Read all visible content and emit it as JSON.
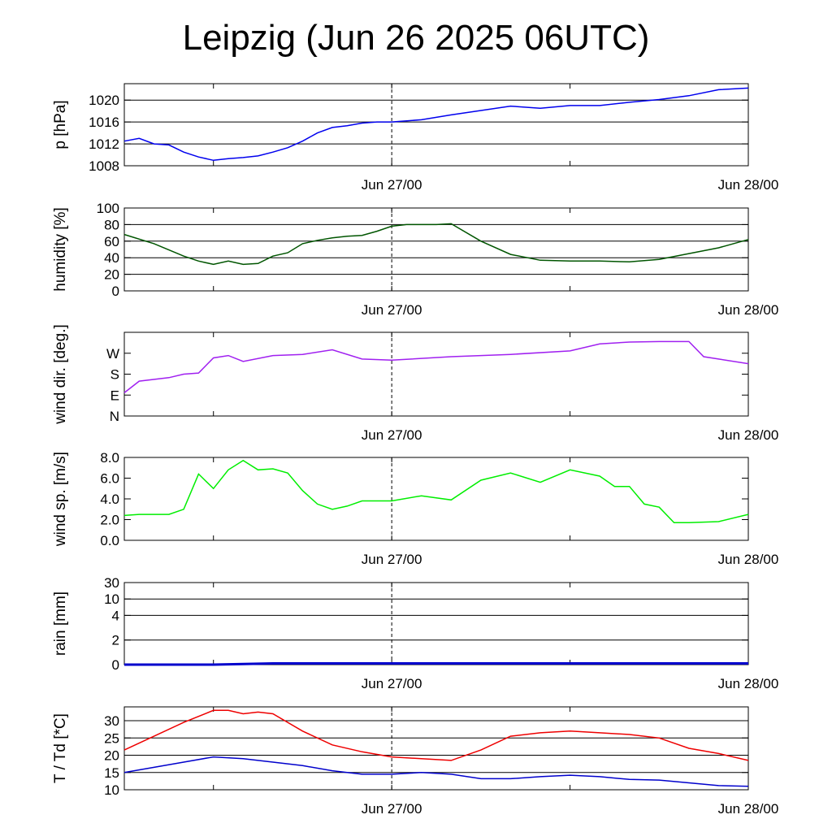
{
  "title": "Leipzig (Jun 26 2025 06UTC)",
  "time_axis": {
    "start": "2025-06-26T06:00Z",
    "end": "2025-06-28T00:00Z",
    "tick_labels": [
      "Jun 27/00",
      "Jun 28/00"
    ],
    "minor_ticks_every_hours": 12,
    "dashed_reference_line": "2025-06-27T00:00Z"
  },
  "colors": {
    "pressure": "#0000ee",
    "humidity": "#005500",
    "wind_dir": "#a020f0",
    "wind_speed": "#00ee00",
    "rain": "#0000cc",
    "temperature": "#ee0000",
    "dewpoint": "#0000cc"
  },
  "chart_data": [
    {
      "type": "line",
      "panel": "pressure",
      "ylabel": "p [hPa]",
      "ylim": [
        1008,
        1023
      ],
      "yticks": [
        {
          "v": 1008,
          "label": "1008"
        },
        {
          "v": 1012,
          "label": "1012"
        },
        {
          "v": 1016,
          "label": "1016"
        },
        {
          "v": 1020,
          "label": "1020"
        }
      ],
      "grid_y": [
        1012,
        1016,
        1020
      ],
      "series": [
        {
          "color_key": "pressure",
          "x": [
            "2025-06-26T06:00Z",
            "2025-06-26T07:00Z",
            "2025-06-26T08:00Z",
            "2025-06-26T09:00Z",
            "2025-06-26T10:00Z",
            "2025-06-26T11:00Z",
            "2025-06-26T12:00Z",
            "2025-06-26T13:00Z",
            "2025-06-26T14:00Z",
            "2025-06-26T15:00Z",
            "2025-06-26T16:00Z",
            "2025-06-26T17:00Z",
            "2025-06-26T18:00Z",
            "2025-06-26T19:00Z",
            "2025-06-26T20:00Z",
            "2025-06-26T21:00Z",
            "2025-06-26T22:00Z",
            "2025-06-26T23:00Z",
            "2025-06-27T00:00Z",
            "2025-06-27T02:00Z",
            "2025-06-27T04:00Z",
            "2025-06-27T06:00Z",
            "2025-06-27T08:00Z",
            "2025-06-27T10:00Z",
            "2025-06-27T12:00Z",
            "2025-06-27T14:00Z",
            "2025-06-27T16:00Z",
            "2025-06-27T18:00Z",
            "2025-06-27T20:00Z",
            "2025-06-27T22:00Z",
            "2025-06-28T00:00Z"
          ],
          "y": [
            1012.5,
            1013,
            1012,
            1011.8,
            1010.5,
            1009.6,
            1009,
            1009.3,
            1009.5,
            1009.8,
            1010.5,
            1011.3,
            1012.5,
            1014,
            1015,
            1015.3,
            1015.8,
            1016,
            1016,
            1016.4,
            1017.3,
            1018.1,
            1018.9,
            1018.5,
            1019,
            1019,
            1019.6,
            1020.1,
            1020.8,
            1021.9,
            1022.2
          ]
        }
      ]
    },
    {
      "type": "line",
      "panel": "humidity",
      "ylabel": "humidity [%]",
      "ylim": [
        0,
        100
      ],
      "yticks": [
        {
          "v": 0,
          "label": "0"
        },
        {
          "v": 20,
          "label": "20"
        },
        {
          "v": 40,
          "label": "40"
        },
        {
          "v": 60,
          "label": "60"
        },
        {
          "v": 80,
          "label": "80"
        },
        {
          "v": 100,
          "label": "100"
        }
      ],
      "grid_y": [
        20,
        40,
        60,
        80
      ],
      "series": [
        {
          "color_key": "humidity",
          "x": [
            "2025-06-26T06:00Z",
            "2025-06-26T08:00Z",
            "2025-06-26T10:00Z",
            "2025-06-26T11:00Z",
            "2025-06-26T12:00Z",
            "2025-06-26T13:00Z",
            "2025-06-26T14:00Z",
            "2025-06-26T15:00Z",
            "2025-06-26T16:00Z",
            "2025-06-26T17:00Z",
            "2025-06-26T18:00Z",
            "2025-06-26T19:00Z",
            "2025-06-26T20:00Z",
            "2025-06-26T21:00Z",
            "2025-06-26T22:00Z",
            "2025-06-26T23:00Z",
            "2025-06-27T00:00Z",
            "2025-06-27T01:00Z",
            "2025-06-27T02:00Z",
            "2025-06-27T03:00Z",
            "2025-06-27T04:00Z",
            "2025-06-27T06:00Z",
            "2025-06-27T08:00Z",
            "2025-06-27T10:00Z",
            "2025-06-27T12:00Z",
            "2025-06-27T14:00Z",
            "2025-06-27T16:00Z",
            "2025-06-27T18:00Z",
            "2025-06-27T20:00Z",
            "2025-06-27T22:00Z",
            "2025-06-28T00:00Z"
          ],
          "y": [
            68,
            57,
            42,
            36,
            32,
            36,
            32,
            33,
            42,
            46,
            57,
            61,
            64,
            66,
            67,
            72,
            78,
            80,
            80,
            80,
            81,
            60,
            44,
            37,
            36,
            36,
            35,
            38,
            45,
            52,
            62
          ]
        }
      ]
    },
    {
      "type": "line",
      "panel": "wind_direction",
      "ylabel": "wind dir. [deg.]",
      "ylim": [
        0,
        360
      ],
      "yticks": [
        {
          "v": 0,
          "label": "N"
        },
        {
          "v": 90,
          "label": "E"
        },
        {
          "v": 180,
          "label": "S"
        },
        {
          "v": 270,
          "label": "W"
        }
      ],
      "grid_y": [],
      "series": [
        {
          "color_key": "wind_dir",
          "x": [
            "2025-06-26T06:00Z",
            "2025-06-26T07:00Z",
            "2025-06-26T09:00Z",
            "2025-06-26T10:00Z",
            "2025-06-26T11:00Z",
            "2025-06-26T12:00Z",
            "2025-06-26T13:00Z",
            "2025-06-26T14:00Z",
            "2025-06-26T16:00Z",
            "2025-06-26T18:00Z",
            "2025-06-26T20:00Z",
            "2025-06-26T22:00Z",
            "2025-06-27T00:00Z",
            "2025-06-27T04:00Z",
            "2025-06-27T08:00Z",
            "2025-06-27T12:00Z",
            "2025-06-27T14:00Z",
            "2025-06-27T16:00Z",
            "2025-06-27T18:00Z",
            "2025-06-27T20:00Z",
            "2025-06-27T21:00Z",
            "2025-06-27T22:00Z",
            "2025-06-28T00:00Z"
          ],
          "y": [
            100,
            150,
            165,
            180,
            185,
            250,
            260,
            235,
            260,
            265,
            285,
            245,
            240,
            255,
            265,
            280,
            310,
            318,
            320,
            320,
            255,
            245,
            225
          ]
        }
      ]
    },
    {
      "type": "line",
      "panel": "wind_speed",
      "ylabel": "wind sp. [m/s]",
      "ylim": [
        0,
        8
      ],
      "yticks": [
        {
          "v": 0,
          "label": "0.0"
        },
        {
          "v": 2,
          "label": "2.0"
        },
        {
          "v": 4,
          "label": "4.0"
        },
        {
          "v": 6,
          "label": "6.0"
        },
        {
          "v": 8,
          "label": "8.0"
        }
      ],
      "grid_y": [],
      "series": [
        {
          "color_key": "wind_speed",
          "x": [
            "2025-06-26T06:00Z",
            "2025-06-26T07:00Z",
            "2025-06-26T09:00Z",
            "2025-06-26T10:00Z",
            "2025-06-26T11:00Z",
            "2025-06-26T12:00Z",
            "2025-06-26T13:00Z",
            "2025-06-26T14:00Z",
            "2025-06-26T15:00Z",
            "2025-06-26T16:00Z",
            "2025-06-26T17:00Z",
            "2025-06-26T18:00Z",
            "2025-06-26T19:00Z",
            "2025-06-26T20:00Z",
            "2025-06-26T21:00Z",
            "2025-06-26T22:00Z",
            "2025-06-27T00:00Z",
            "2025-06-27T02:00Z",
            "2025-06-27T04:00Z",
            "2025-06-27T06:00Z",
            "2025-06-27T08:00Z",
            "2025-06-27T10:00Z",
            "2025-06-27T12:00Z",
            "2025-06-27T14:00Z",
            "2025-06-27T15:00Z",
            "2025-06-27T16:00Z",
            "2025-06-27T17:00Z",
            "2025-06-27T18:00Z",
            "2025-06-27T19:00Z",
            "2025-06-27T20:00Z",
            "2025-06-27T22:00Z",
            "2025-06-28T00:00Z"
          ],
          "y": [
            2.4,
            2.5,
            2.5,
            3.0,
            6.4,
            5.0,
            6.8,
            7.7,
            6.8,
            6.9,
            6.5,
            4.8,
            3.5,
            3.0,
            3.3,
            3.8,
            3.8,
            4.3,
            3.9,
            5.8,
            6.5,
            5.6,
            6.8,
            6.2,
            5.2,
            5.2,
            3.5,
            3.2,
            1.7,
            1.7,
            1.8,
            2.5
          ]
        }
      ]
    },
    {
      "type": "area",
      "panel": "rain",
      "ylabel": "rain [mm]",
      "ylim": [
        0,
        30
      ],
      "yticks": [
        {
          "v": 0,
          "label": "0",
          "pos": 0
        },
        {
          "v": 2,
          "label": "2",
          "pos": 0.3
        },
        {
          "v": 4,
          "label": "4",
          "pos": 0.6
        },
        {
          "v": 10,
          "label": "10",
          "pos": 0.8
        },
        {
          "v": 30,
          "label": "30",
          "pos": 1.0
        }
      ],
      "grid_y": [
        2,
        4,
        10
      ],
      "series": [
        {
          "color_key": "rain",
          "x": [
            "2025-06-26T06:00Z",
            "2025-06-26T12:00Z",
            "2025-06-26T16:00Z",
            "2025-06-28T00:00Z"
          ],
          "y": [
            0,
            0,
            0.1,
            0.1
          ]
        }
      ]
    },
    {
      "type": "line",
      "panel": "temperature",
      "ylabel": "T / Td [*C]",
      "ylim": [
        10,
        34
      ],
      "yticks": [
        {
          "v": 10,
          "label": "10"
        },
        {
          "v": 15,
          "label": "15"
        },
        {
          "v": 20,
          "label": "20"
        },
        {
          "v": 25,
          "label": "25"
        },
        {
          "v": 30,
          "label": "30"
        }
      ],
      "grid_y": [
        15,
        20,
        25,
        30
      ],
      "series": [
        {
          "color_key": "temperature",
          "x": [
            "2025-06-26T06:00Z",
            "2025-06-26T08:00Z",
            "2025-06-26T10:00Z",
            "2025-06-26T12:00Z",
            "2025-06-26T13:00Z",
            "2025-06-26T14:00Z",
            "2025-06-26T15:00Z",
            "2025-06-26T16:00Z",
            "2025-06-26T18:00Z",
            "2025-06-26T20:00Z",
            "2025-06-26T22:00Z",
            "2025-06-27T00:00Z",
            "2025-06-27T02:00Z",
            "2025-06-27T04:00Z",
            "2025-06-27T06:00Z",
            "2025-06-27T08:00Z",
            "2025-06-27T10:00Z",
            "2025-06-27T12:00Z",
            "2025-06-27T14:00Z",
            "2025-06-27T16:00Z",
            "2025-06-27T18:00Z",
            "2025-06-27T20:00Z",
            "2025-06-27T22:00Z",
            "2025-06-28T00:00Z"
          ],
          "y": [
            21.5,
            25.5,
            29.5,
            33,
            33,
            32,
            32.5,
            32,
            27,
            23,
            21,
            19.5,
            19,
            18.5,
            21.5,
            25.5,
            26.5,
            27,
            26.5,
            26,
            25,
            22,
            20.5,
            18.5
          ]
        },
        {
          "color_key": "dewpoint",
          "x": [
            "2025-06-26T06:00Z",
            "2025-06-26T08:00Z",
            "2025-06-26T10:00Z",
            "2025-06-26T12:00Z",
            "2025-06-26T14:00Z",
            "2025-06-26T16:00Z",
            "2025-06-26T18:00Z",
            "2025-06-26T20:00Z",
            "2025-06-26T22:00Z",
            "2025-06-27T00:00Z",
            "2025-06-27T02:00Z",
            "2025-06-27T04:00Z",
            "2025-06-27T06:00Z",
            "2025-06-27T08:00Z",
            "2025-06-27T10:00Z",
            "2025-06-27T12:00Z",
            "2025-06-27T14:00Z",
            "2025-06-27T16:00Z",
            "2025-06-27T18:00Z",
            "2025-06-27T20:00Z",
            "2025-06-27T22:00Z",
            "2025-06-28T00:00Z"
          ],
          "y": [
            15,
            16.5,
            18,
            19.5,
            19,
            18,
            17,
            15.5,
            14.5,
            14.5,
            15,
            14.5,
            13.2,
            13.2,
            13.8,
            14.2,
            13.8,
            13,
            12.8,
            12,
            11.2,
            11
          ]
        }
      ]
    }
  ]
}
